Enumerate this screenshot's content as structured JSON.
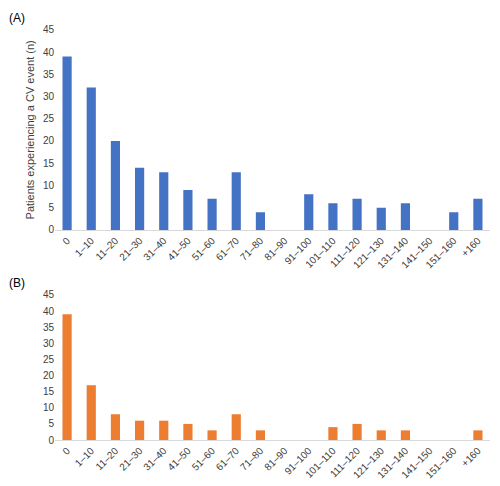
{
  "chart_data": [
    {
      "type": "bar",
      "title": "(A)",
      "y_label": "Patients experiencing a CV event (n)",
      "categories": [
        "0",
        "1–10",
        "11–20",
        "21–30",
        "31–40",
        "41–50",
        "51–60",
        "61–70",
        "71–80",
        "81–90",
        "91–100",
        "101–110",
        "111–120",
        "121–130",
        "131–140",
        "141–150",
        "151–160",
        "+160"
      ],
      "values": [
        39,
        32,
        20,
        14,
        13,
        9,
        7,
        13,
        4,
        0,
        8,
        6,
        7,
        5,
        6,
        0,
        4,
        7
      ],
      "color": "#4472c4",
      "ylim": [
        0,
        45
      ],
      "yticks": [
        0,
        5,
        10,
        15,
        20,
        25,
        30,
        35,
        40,
        45
      ],
      "grid": false
    },
    {
      "type": "bar",
      "title": "(B)",
      "categories": [
        "0",
        "1–10",
        "11–20",
        "21–30",
        "31–40",
        "41–50",
        "51–60",
        "61–70",
        "71–80",
        "81–90",
        "91–100",
        "101–110",
        "111–120",
        "121–130",
        "131–140",
        "141–150",
        "151–160",
        "+160"
      ],
      "values": [
        39,
        17,
        8,
        6,
        6,
        5,
        3,
        8,
        3,
        0,
        0,
        4,
        5,
        3,
        3,
        0,
        0,
        3
      ],
      "color": "#ed7d31",
      "ylim": [
        0,
        45
      ],
      "yticks": [
        0,
        5,
        10,
        15,
        20,
        25,
        30,
        35,
        40,
        45
      ],
      "grid": false
    }
  ]
}
